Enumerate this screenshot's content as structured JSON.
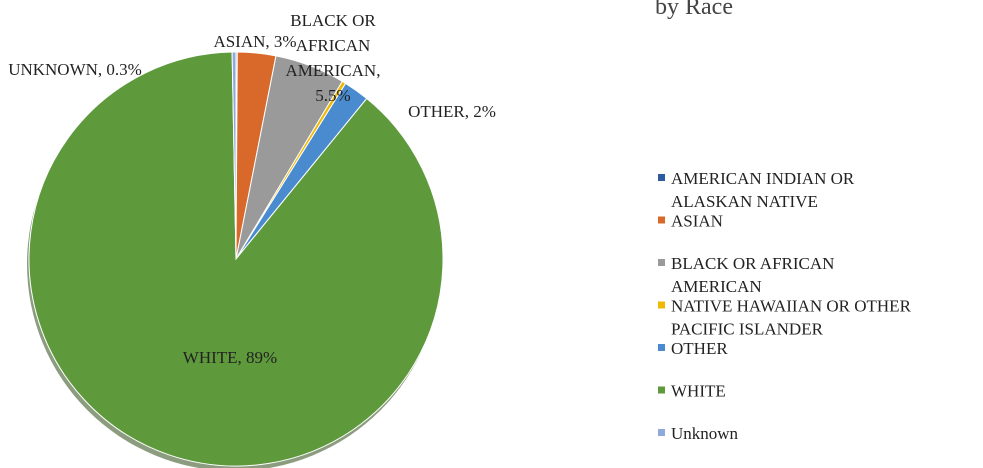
{
  "chart_data": {
    "type": "pie",
    "title": "by Race",
    "categories": [
      "AMERICAN INDIAN OR ALASKAN NATIVE",
      "ASIAN",
      "BLACK OR AFRICAN AMERICAN",
      "NATIVE HAWAIIAN OR OTHER PACIFIC ISLANDER",
      "OTHER",
      "WHITE",
      "Unknown"
    ],
    "values": [
      0.1,
      3,
      5.5,
      0.3,
      2,
      89,
      0.3
    ],
    "value_labels": [
      null,
      "ASIAN, 3%",
      "BLACK OR AFRICAN AMERICAN, 5.5%",
      null,
      "OTHER, 2%",
      "WHITE, 89%",
      "UNKNOWN, 0.3%"
    ],
    "colors": [
      "#2e5aa0",
      "#d8692a",
      "#9a9a9a",
      "#f0b800",
      "#4a8bd0",
      "#5e9a3c",
      "#8fa9dc"
    ],
    "legend": "right"
  }
}
